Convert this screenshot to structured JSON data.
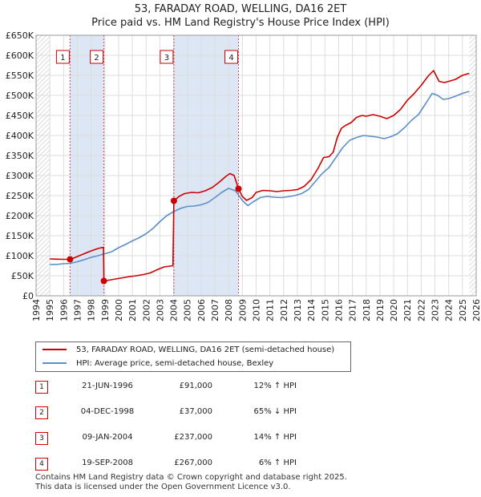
{
  "chart_data": {
    "type": "line",
    "title": "53, FARADAY ROAD, WELLING, DA16 2ET",
    "subtitle": "Price paid vs. HM Land Registry's House Price Index (HPI)",
    "xlabel": "",
    "ylabel": "",
    "xlim": [
      1994,
      2026
    ],
    "ylim": [
      0,
      650000
    ],
    "x_ticks": [
      "1994",
      "1995",
      "1996",
      "1997",
      "1998",
      "1999",
      "2000",
      "2001",
      "2002",
      "2003",
      "2004",
      "2005",
      "2006",
      "2007",
      "2008",
      "2009",
      "2010",
      "2011",
      "2012",
      "2013",
      "2014",
      "2015",
      "2016",
      "2017",
      "2018",
      "2019",
      "2020",
      "2021",
      "2022",
      "2023",
      "2024",
      "2025",
      "2026"
    ],
    "y_ticks": [
      {
        "value": 0,
        "label": "£0"
      },
      {
        "value": 50000,
        "label": "£50K"
      },
      {
        "value": 100000,
        "label": "£100K"
      },
      {
        "value": 150000,
        "label": "£150K"
      },
      {
        "value": 200000,
        "label": "£200K"
      },
      {
        "value": 250000,
        "label": "£250K"
      },
      {
        "value": 300000,
        "label": "£300K"
      },
      {
        "value": 350000,
        "label": "£350K"
      },
      {
        "value": 400000,
        "label": "£400K"
      },
      {
        "value": 450000,
        "label": "£450K"
      },
      {
        "value": 500000,
        "label": "£500K"
      },
      {
        "value": 550000,
        "label": "£550K"
      },
      {
        "value": 600000,
        "label": "£600K"
      },
      {
        "value": 650000,
        "label": "£650K"
      }
    ],
    "grid": true,
    "data_start": 1995.0,
    "data_end": 2025.5,
    "series": [
      {
        "name": "53, FARADAY ROAD, WELLING, DA16 2ET (semi-detached house)",
        "color": "#cc0000",
        "points": [
          [
            1995.0,
            92000
          ],
          [
            1995.5,
            91500
          ],
          [
            1996.0,
            91000
          ],
          [
            1996.47,
            91000
          ],
          [
            1996.8,
            95000
          ],
          [
            1997.0,
            98000
          ],
          [
            1997.5,
            105000
          ],
          [
            1998.0,
            112000
          ],
          [
            1998.5,
            118000
          ],
          [
            1998.9,
            121000
          ],
          [
            1998.93,
            37000
          ],
          [
            1999.3,
            39000
          ],
          [
            1999.8,
            42000
          ],
          [
            2000.3,
            45000
          ],
          [
            2000.8,
            48000
          ],
          [
            2001.3,
            50000
          ],
          [
            2001.8,
            53000
          ],
          [
            2002.3,
            57000
          ],
          [
            2002.8,
            65000
          ],
          [
            2003.3,
            72000
          ],
          [
            2003.95,
            75000
          ],
          [
            2004.02,
            237000
          ],
          [
            2004.4,
            248000
          ],
          [
            2004.8,
            255000
          ],
          [
            2005.3,
            258000
          ],
          [
            2005.8,
            257000
          ],
          [
            2006.3,
            262000
          ],
          [
            2006.8,
            270000
          ],
          [
            2007.3,
            283000
          ],
          [
            2007.8,
            298000
          ],
          [
            2008.1,
            305000
          ],
          [
            2008.4,
            300000
          ],
          [
            2008.72,
            267000
          ],
          [
            2009.0,
            248000
          ],
          [
            2009.3,
            238000
          ],
          [
            2009.7,
            245000
          ],
          [
            2010.0,
            258000
          ],
          [
            2010.5,
            263000
          ],
          [
            2011.0,
            262000
          ],
          [
            2011.5,
            260000
          ],
          [
            2012.0,
            262000
          ],
          [
            2012.5,
            263000
          ],
          [
            2013.0,
            265000
          ],
          [
            2013.5,
            273000
          ],
          [
            2014.0,
            290000
          ],
          [
            2014.5,
            318000
          ],
          [
            2014.9,
            345000
          ],
          [
            2015.3,
            347000
          ],
          [
            2015.6,
            358000
          ],
          [
            2015.9,
            395000
          ],
          [
            2016.2,
            418000
          ],
          [
            2016.5,
            425000
          ],
          [
            2016.9,
            432000
          ],
          [
            2017.3,
            445000
          ],
          [
            2017.7,
            450000
          ],
          [
            2018.0,
            448000
          ],
          [
            2018.5,
            452000
          ],
          [
            2019.0,
            448000
          ],
          [
            2019.5,
            442000
          ],
          [
            2020.0,
            450000
          ],
          [
            2020.5,
            465000
          ],
          [
            2021.0,
            488000
          ],
          [
            2021.5,
            505000
          ],
          [
            2022.0,
            525000
          ],
          [
            2022.5,
            548000
          ],
          [
            2022.9,
            562000
          ],
          [
            2023.3,
            535000
          ],
          [
            2023.7,
            532000
          ],
          [
            2024.0,
            535000
          ],
          [
            2024.5,
            540000
          ],
          [
            2025.0,
            550000
          ],
          [
            2025.5,
            555000
          ]
        ]
      },
      {
        "name": "HPI: Average price, semi-detached house, Bexley",
        "color": "#5b8fc9",
        "points": [
          [
            1995.0,
            78000
          ],
          [
            1995.5,
            78500
          ],
          [
            1996.0,
            80000
          ],
          [
            1996.5,
            81000
          ],
          [
            1997.0,
            85000
          ],
          [
            1997.5,
            90000
          ],
          [
            1998.0,
            96000
          ],
          [
            1998.5,
            100000
          ],
          [
            1999.0,
            105000
          ],
          [
            1999.5,
            110000
          ],
          [
            2000.0,
            120000
          ],
          [
            2000.5,
            128000
          ],
          [
            2001.0,
            137000
          ],
          [
            2001.5,
            145000
          ],
          [
            2002.0,
            155000
          ],
          [
            2002.5,
            168000
          ],
          [
            2003.0,
            185000
          ],
          [
            2003.5,
            200000
          ],
          [
            2004.0,
            210000
          ],
          [
            2004.5,
            218000
          ],
          [
            2005.0,
            223000
          ],
          [
            2005.5,
            224000
          ],
          [
            2006.0,
            227000
          ],
          [
            2006.5,
            233000
          ],
          [
            2007.0,
            245000
          ],
          [
            2007.5,
            258000
          ],
          [
            2008.0,
            268000
          ],
          [
            2008.5,
            262000
          ],
          [
            2009.0,
            238000
          ],
          [
            2009.4,
            225000
          ],
          [
            2009.8,
            235000
          ],
          [
            2010.3,
            245000
          ],
          [
            2010.8,
            248000
          ],
          [
            2011.3,
            246000
          ],
          [
            2011.8,
            245000
          ],
          [
            2012.3,
            247000
          ],
          [
            2012.8,
            250000
          ],
          [
            2013.3,
            255000
          ],
          [
            2013.8,
            265000
          ],
          [
            2014.3,
            285000
          ],
          [
            2014.8,
            305000
          ],
          [
            2015.3,
            320000
          ],
          [
            2015.8,
            345000
          ],
          [
            2016.3,
            370000
          ],
          [
            2016.8,
            388000
          ],
          [
            2017.3,
            395000
          ],
          [
            2017.8,
            400000
          ],
          [
            2018.3,
            398000
          ],
          [
            2018.8,
            396000
          ],
          [
            2019.3,
            392000
          ],
          [
            2019.8,
            397000
          ],
          [
            2020.3,
            405000
          ],
          [
            2020.8,
            420000
          ],
          [
            2021.3,
            438000
          ],
          [
            2021.8,
            452000
          ],
          [
            2022.3,
            478000
          ],
          [
            2022.8,
            505000
          ],
          [
            2023.2,
            500000
          ],
          [
            2023.6,
            490000
          ],
          [
            2024.0,
            492000
          ],
          [
            2024.5,
            498000
          ],
          [
            2025.0,
            505000
          ],
          [
            2025.5,
            510000
          ]
        ]
      }
    ],
    "sales": [
      {
        "label": "1",
        "x": 1996.47,
        "price": 91000,
        "date": "21-JUN-1996",
        "price_text": "£91,000",
        "hpi_text": "12% ↑ HPI"
      },
      {
        "label": "2",
        "x": 1998.93,
        "price": 37000,
        "date": "04-DEC-1998",
        "price_text": "£37,000",
        "hpi_text": "65% ↓ HPI"
      },
      {
        "label": "3",
        "x": 2004.02,
        "price": 237000,
        "date": "09-JAN-2004",
        "price_text": "£237,000",
        "hpi_text": "14% ↑ HPI"
      },
      {
        "label": "4",
        "x": 2008.72,
        "price": 267000,
        "date": "19-SEP-2008",
        "price_text": "£267,000",
        "hpi_text": "6% ↑ HPI"
      }
    ]
  },
  "legend": {
    "series1": "53, FARADAY ROAD, WELLING, DA16 2ET (semi-detached house)",
    "series2": "HPI: Average price, semi-detached house, Bexley"
  },
  "colors": {
    "property": "#cc0000",
    "hpi": "#5b8fc9",
    "sale_band": "#dde6f5",
    "projection_hatch": "#bbbbbb"
  },
  "footer": {
    "line1": "Contains HM Land Registry data © Crown copyright and database right 2025.",
    "line2": "This data is licensed under the Open Government Licence v3.0."
  }
}
